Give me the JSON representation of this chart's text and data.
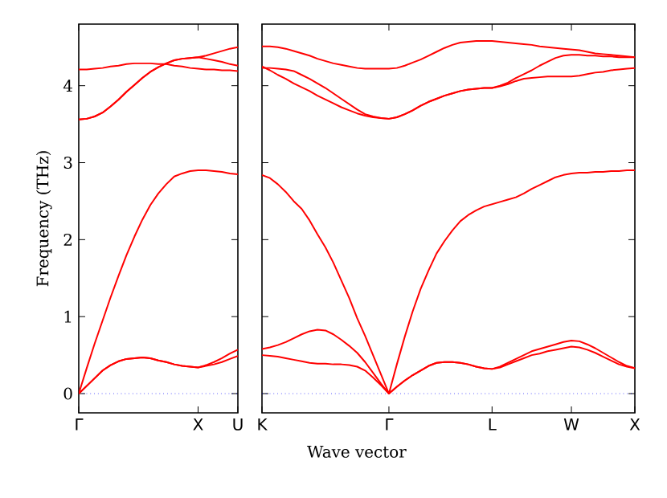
{
  "chart_data": [
    {
      "type": "line",
      "ylabel": "Frequency (THz)",
      "ylim": [
        -0.25,
        4.8
      ],
      "categories": [
        "Γ",
        null,
        null,
        null,
        null,
        null,
        null,
        null,
        null,
        null,
        null,
        null,
        null,
        null,
        null,
        "X",
        null,
        null,
        null,
        null,
        "U"
      ],
      "yticks": [
        0,
        1,
        2,
        3,
        4
      ],
      "ref_lines": [
        {
          "axis": "y",
          "value": 0,
          "color": "#0000ff",
          "line_style": "dotted"
        }
      ],
      "series": [
        {
          "color": "#ff0000",
          "values": [
            0,
            0.1,
            0.2,
            0.3,
            0.37,
            0.42,
            0.45,
            0.46,
            0.47,
            0.46,
            0.43,
            0.41,
            0.38,
            0.36,
            0.35,
            0.34,
            0.36,
            0.38,
            0.41,
            0.45,
            0.49
          ]
        },
        {
          "color": "#ff0000",
          "values": [
            0,
            0.1,
            0.2,
            0.3,
            0.37,
            0.42,
            0.45,
            0.46,
            0.47,
            0.46,
            0.43,
            0.41,
            0.38,
            0.36,
            0.35,
            0.34,
            0.37,
            0.41,
            0.46,
            0.52,
            0.57
          ]
        },
        {
          "color": "#ff0000",
          "values": [
            0,
            0.33,
            0.65,
            0.95,
            1.25,
            1.53,
            1.8,
            2.04,
            2.26,
            2.45,
            2.6,
            2.72,
            2.82,
            2.86,
            2.89,
            2.9,
            2.9,
            2.89,
            2.88,
            2.86,
            2.85
          ]
        },
        {
          "color": "#ff0000",
          "values": [
            3.56,
            3.57,
            3.6,
            3.65,
            3.73,
            3.82,
            3.92,
            4.01,
            4.1,
            4.18,
            4.24,
            4.29,
            4.33,
            4.35,
            4.36,
            4.37,
            4.35,
            4.33,
            4.31,
            4.28,
            4.26
          ]
        },
        {
          "color": "#ff0000",
          "values": [
            3.56,
            3.57,
            3.6,
            3.65,
            3.73,
            3.82,
            3.92,
            4.01,
            4.1,
            4.18,
            4.24,
            4.29,
            4.33,
            4.35,
            4.36,
            4.37,
            4.39,
            4.42,
            4.45,
            4.48,
            4.5
          ]
        },
        {
          "color": "#ff0000",
          "values": [
            4.21,
            4.21,
            4.22,
            4.23,
            4.25,
            4.26,
            4.28,
            4.29,
            4.29,
            4.29,
            4.28,
            4.28,
            4.26,
            4.25,
            4.23,
            4.22,
            4.21,
            4.21,
            4.2,
            4.2,
            4.19
          ]
        }
      ]
    },
    {
      "type": "line",
      "xlabel": "Wave vector",
      "ylim": [
        -0.25,
        4.8
      ],
      "tick_labels": "x",
      "categories": [
        "K",
        null,
        null,
        null,
        null,
        null,
        null,
        null,
        null,
        null,
        null,
        null,
        null,
        null,
        null,
        null,
        "Γ",
        null,
        null,
        null,
        null,
        null,
        null,
        null,
        null,
        null,
        null,
        null,
        null,
        "L",
        null,
        null,
        null,
        null,
        null,
        null,
        null,
        null,
        null,
        "W",
        null,
        null,
        null,
        null,
        null,
        null,
        null,
        "X"
      ],
      "yticks": [
        0,
        1,
        2,
        3,
        4
      ],
      "ref_lines": [
        {
          "axis": "y",
          "value": 0,
          "color": "#0000ff",
          "line_style": "dotted"
        }
      ],
      "series": [
        {
          "color": "#ff0000",
          "values": [
            0.5,
            0.49,
            0.48,
            0.46,
            0.44,
            0.42,
            0.4,
            0.39,
            0.39,
            0.38,
            0.38,
            0.37,
            0.35,
            0.3,
            0.21,
            0.11,
            0,
            0.09,
            0.17,
            0.24,
            0.3,
            0.36,
            0.4,
            0.41,
            0.41,
            0.4,
            0.38,
            0.35,
            0.33,
            0.32,
            0.34,
            0.38,
            0.42,
            0.46,
            0.5,
            0.52,
            0.55,
            0.57,
            0.59,
            0.61,
            0.6,
            0.57,
            0.53,
            0.48,
            0.43,
            0.38,
            0.35,
            0.33
          ]
        },
        {
          "color": "#ff0000",
          "values": [
            0.58,
            0.6,
            0.63,
            0.67,
            0.72,
            0.77,
            0.81,
            0.83,
            0.82,
            0.77,
            0.7,
            0.62,
            0.53,
            0.41,
            0.27,
            0.13,
            0,
            0.09,
            0.17,
            0.24,
            0.3,
            0.36,
            0.4,
            0.41,
            0.41,
            0.4,
            0.38,
            0.35,
            0.33,
            0.32,
            0.35,
            0.4,
            0.45,
            0.5,
            0.55,
            0.58,
            0.61,
            0.64,
            0.67,
            0.69,
            0.68,
            0.64,
            0.59,
            0.53,
            0.47,
            0.41,
            0.36,
            0.33
          ]
        },
        {
          "color": "#ff0000",
          "values": [
            2.84,
            2.8,
            2.72,
            2.62,
            2.5,
            2.4,
            2.25,
            2.07,
            1.9,
            1.7,
            1.47,
            1.24,
            0.98,
            0.75,
            0.5,
            0.25,
            0,
            0.38,
            0.74,
            1.07,
            1.36,
            1.6,
            1.82,
            1.98,
            2.12,
            2.24,
            2.32,
            2.38,
            2.43,
            2.46,
            2.49,
            2.52,
            2.55,
            2.6,
            2.66,
            2.71,
            2.76,
            2.81,
            2.84,
            2.86,
            2.87,
            2.87,
            2.88,
            2.88,
            2.89,
            2.89,
            2.9,
            2.9
          ]
        },
        {
          "color": "#ff0000",
          "values": [
            4.23,
            4.23,
            4.22,
            4.21,
            4.19,
            4.14,
            4.09,
            4.03,
            3.97,
            3.9,
            3.83,
            3.76,
            3.69,
            3.63,
            3.6,
            3.58,
            3.57,
            3.59,
            3.63,
            3.68,
            3.74,
            3.79,
            3.83,
            3.87,
            3.9,
            3.93,
            3.95,
            3.96,
            3.97,
            3.97,
            3.99,
            4.02,
            4.06,
            4.09,
            4.1,
            4.11,
            4.12,
            4.12,
            4.12,
            4.12,
            4.13,
            4.15,
            4.17,
            4.18,
            4.2,
            4.21,
            4.22,
            4.23
          ]
        },
        {
          "color": "#ff0000",
          "values": [
            4.25,
            4.2,
            4.14,
            4.09,
            4.03,
            3.98,
            3.93,
            3.87,
            3.82,
            3.77,
            3.72,
            3.68,
            3.64,
            3.61,
            3.59,
            3.58,
            3.57,
            3.59,
            3.63,
            3.68,
            3.74,
            3.79,
            3.83,
            3.87,
            3.9,
            3.93,
            3.95,
            3.96,
            3.97,
            3.97,
            4.0,
            4.04,
            4.1,
            4.15,
            4.2,
            4.26,
            4.31,
            4.36,
            4.39,
            4.4,
            4.4,
            4.39,
            4.39,
            4.38,
            4.38,
            4.37,
            4.37,
            4.37
          ]
        },
        {
          "color": "#ff0000",
          "values": [
            4.51,
            4.51,
            4.5,
            4.48,
            4.45,
            4.42,
            4.39,
            4.35,
            4.32,
            4.29,
            4.27,
            4.25,
            4.23,
            4.22,
            4.22,
            4.22,
            4.22,
            4.23,
            4.26,
            4.3,
            4.34,
            4.39,
            4.44,
            4.49,
            4.53,
            4.56,
            4.57,
            4.58,
            4.58,
            4.58,
            4.57,
            4.56,
            4.55,
            4.54,
            4.53,
            4.51,
            4.5,
            4.49,
            4.48,
            4.47,
            4.46,
            4.44,
            4.42,
            4.41,
            4.4,
            4.39,
            4.38,
            4.37
          ]
        }
      ]
    }
  ]
}
